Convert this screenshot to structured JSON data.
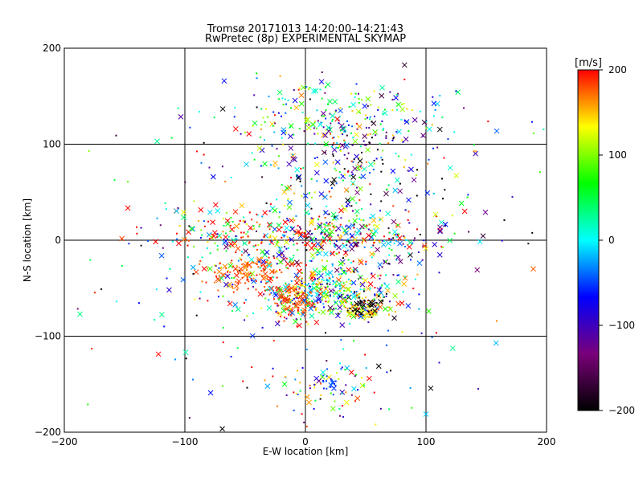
{
  "chart_data": {
    "type": "scatter",
    "title": "Tromsø 20171013 14:20:00–14:21:43",
    "subtitle": "RwPretec (8p) EXPERIMENTAL SKYMAP",
    "xlabel": "E-W location [km]",
    "ylabel": "N-S location [km]",
    "xlim": [
      -200,
      200
    ],
    "ylim": [
      -200,
      200
    ],
    "xticks": [
      -200,
      -100,
      0,
      100,
      200
    ],
    "yticks": [
      -200,
      -100,
      0,
      100,
      200
    ],
    "xtick_labels": [
      "−200",
      "−100",
      "0",
      "100",
      "200"
    ],
    "ytick_labels": [
      "−200",
      "−100",
      "0",
      "100",
      "200"
    ],
    "grid": true,
    "markers": [
      "cross",
      "dot"
    ],
    "colorbar": {
      "label": "[m/s]",
      "min": -200,
      "max": 200,
      "ticks": [
        200,
        100,
        0,
        -100,
        -200
      ],
      "tick_labels": [
        "200",
        "100",
        "0",
        "−100",
        "−200"
      ],
      "colormap": [
        "#000000",
        "#7a007a",
        "#0000ff",
        "#00ffff",
        "#00ff00",
        "#ffff00",
        "#ff0000"
      ]
    },
    "clusters": [
      {
        "x": 20,
        "y": -55,
        "sx": 28,
        "sy": 14,
        "n": 260,
        "velocity": 20,
        "vspread": 140
      },
      {
        "x": 50,
        "y": -72,
        "sx": 10,
        "sy": 6,
        "n": 70,
        "velocity": 150,
        "vspread": 50
      },
      {
        "x": 45,
        "y": -68,
        "sx": 12,
        "sy": 8,
        "n": 45,
        "velocity": -200,
        "vspread": 15
      },
      {
        "x": -45,
        "y": -35,
        "sx": 18,
        "sy": 10,
        "n": 120,
        "velocity": 180,
        "vspread": 20
      },
      {
        "x": -10,
        "y": -68,
        "sx": 8,
        "sy": 12,
        "n": 90,
        "velocity": 185,
        "vspread": 15
      },
      {
        "x": 0,
        "y": -35,
        "sx": 45,
        "sy": 25,
        "n": 240,
        "velocity": 50,
        "vspread": 200
      },
      {
        "x": 20,
        "y": 5,
        "sx": 45,
        "sy": 12,
        "n": 260,
        "velocity": 40,
        "vspread": 220
      },
      {
        "x": -60,
        "y": 5,
        "sx": 35,
        "sy": 15,
        "n": 120,
        "velocity": 110,
        "vspread": 180
      },
      {
        "x": 30,
        "y": 120,
        "sx": 45,
        "sy": 22,
        "n": 240,
        "velocity": 10,
        "vspread": 160
      },
      {
        "x": 40,
        "y": 65,
        "sx": 40,
        "sy": 40,
        "n": 200,
        "velocity": -20,
        "vspread": 220
      },
      {
        "x": 20,
        "y": -150,
        "sx": 22,
        "sy": 15,
        "n": 70,
        "velocity": 40,
        "vspread": 180
      },
      {
        "x": 20,
        "y": -148,
        "sx": 5,
        "sy": 5,
        "n": 16,
        "velocity": -50,
        "vspread": 10
      },
      {
        "x": 0,
        "y": 0,
        "sx": 100,
        "sy": 100,
        "n": 300,
        "velocity": 0,
        "vspread": 260
      }
    ]
  }
}
